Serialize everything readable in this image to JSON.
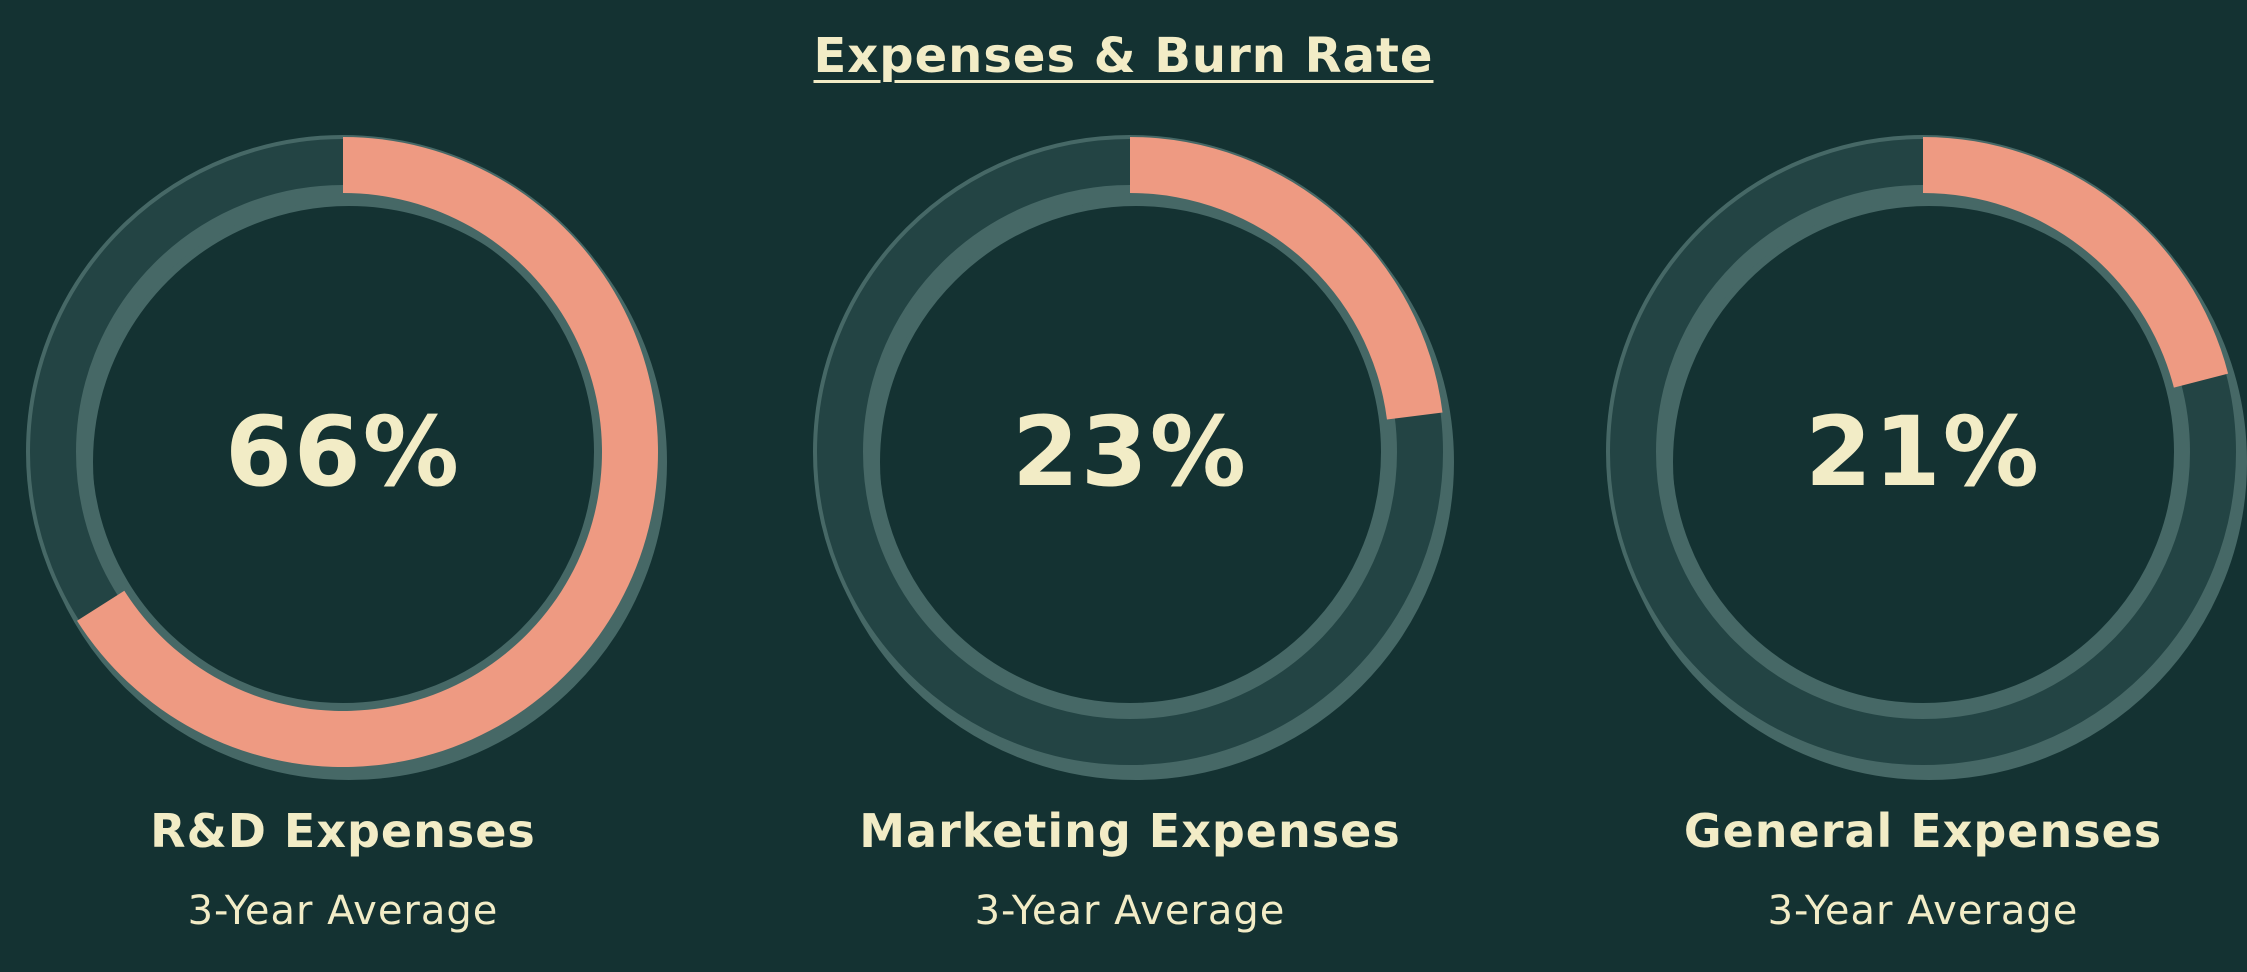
{
  "chart_data": {
    "type": "pie",
    "variant": "radial-gauge",
    "title": "Expenses & Burn Rate",
    "gauges": [
      {
        "label": "R&D Expenses",
        "value": 66,
        "value_label": "66%",
        "subtitle": "3-Year Average"
      },
      {
        "label": "Marketing Expenses",
        "value": 23,
        "value_label": "23%",
        "subtitle": "3-Year Average"
      },
      {
        "label": "General Expenses",
        "value": 21,
        "value_label": "21%",
        "subtitle": "3-Year Average"
      }
    ],
    "range": [
      0,
      100
    ]
  },
  "colors": {
    "background": "#143232",
    "track": "#234444",
    "track_edge": "#466866",
    "progress": "#ee9a82",
    "text": "#f2ecc6"
  }
}
